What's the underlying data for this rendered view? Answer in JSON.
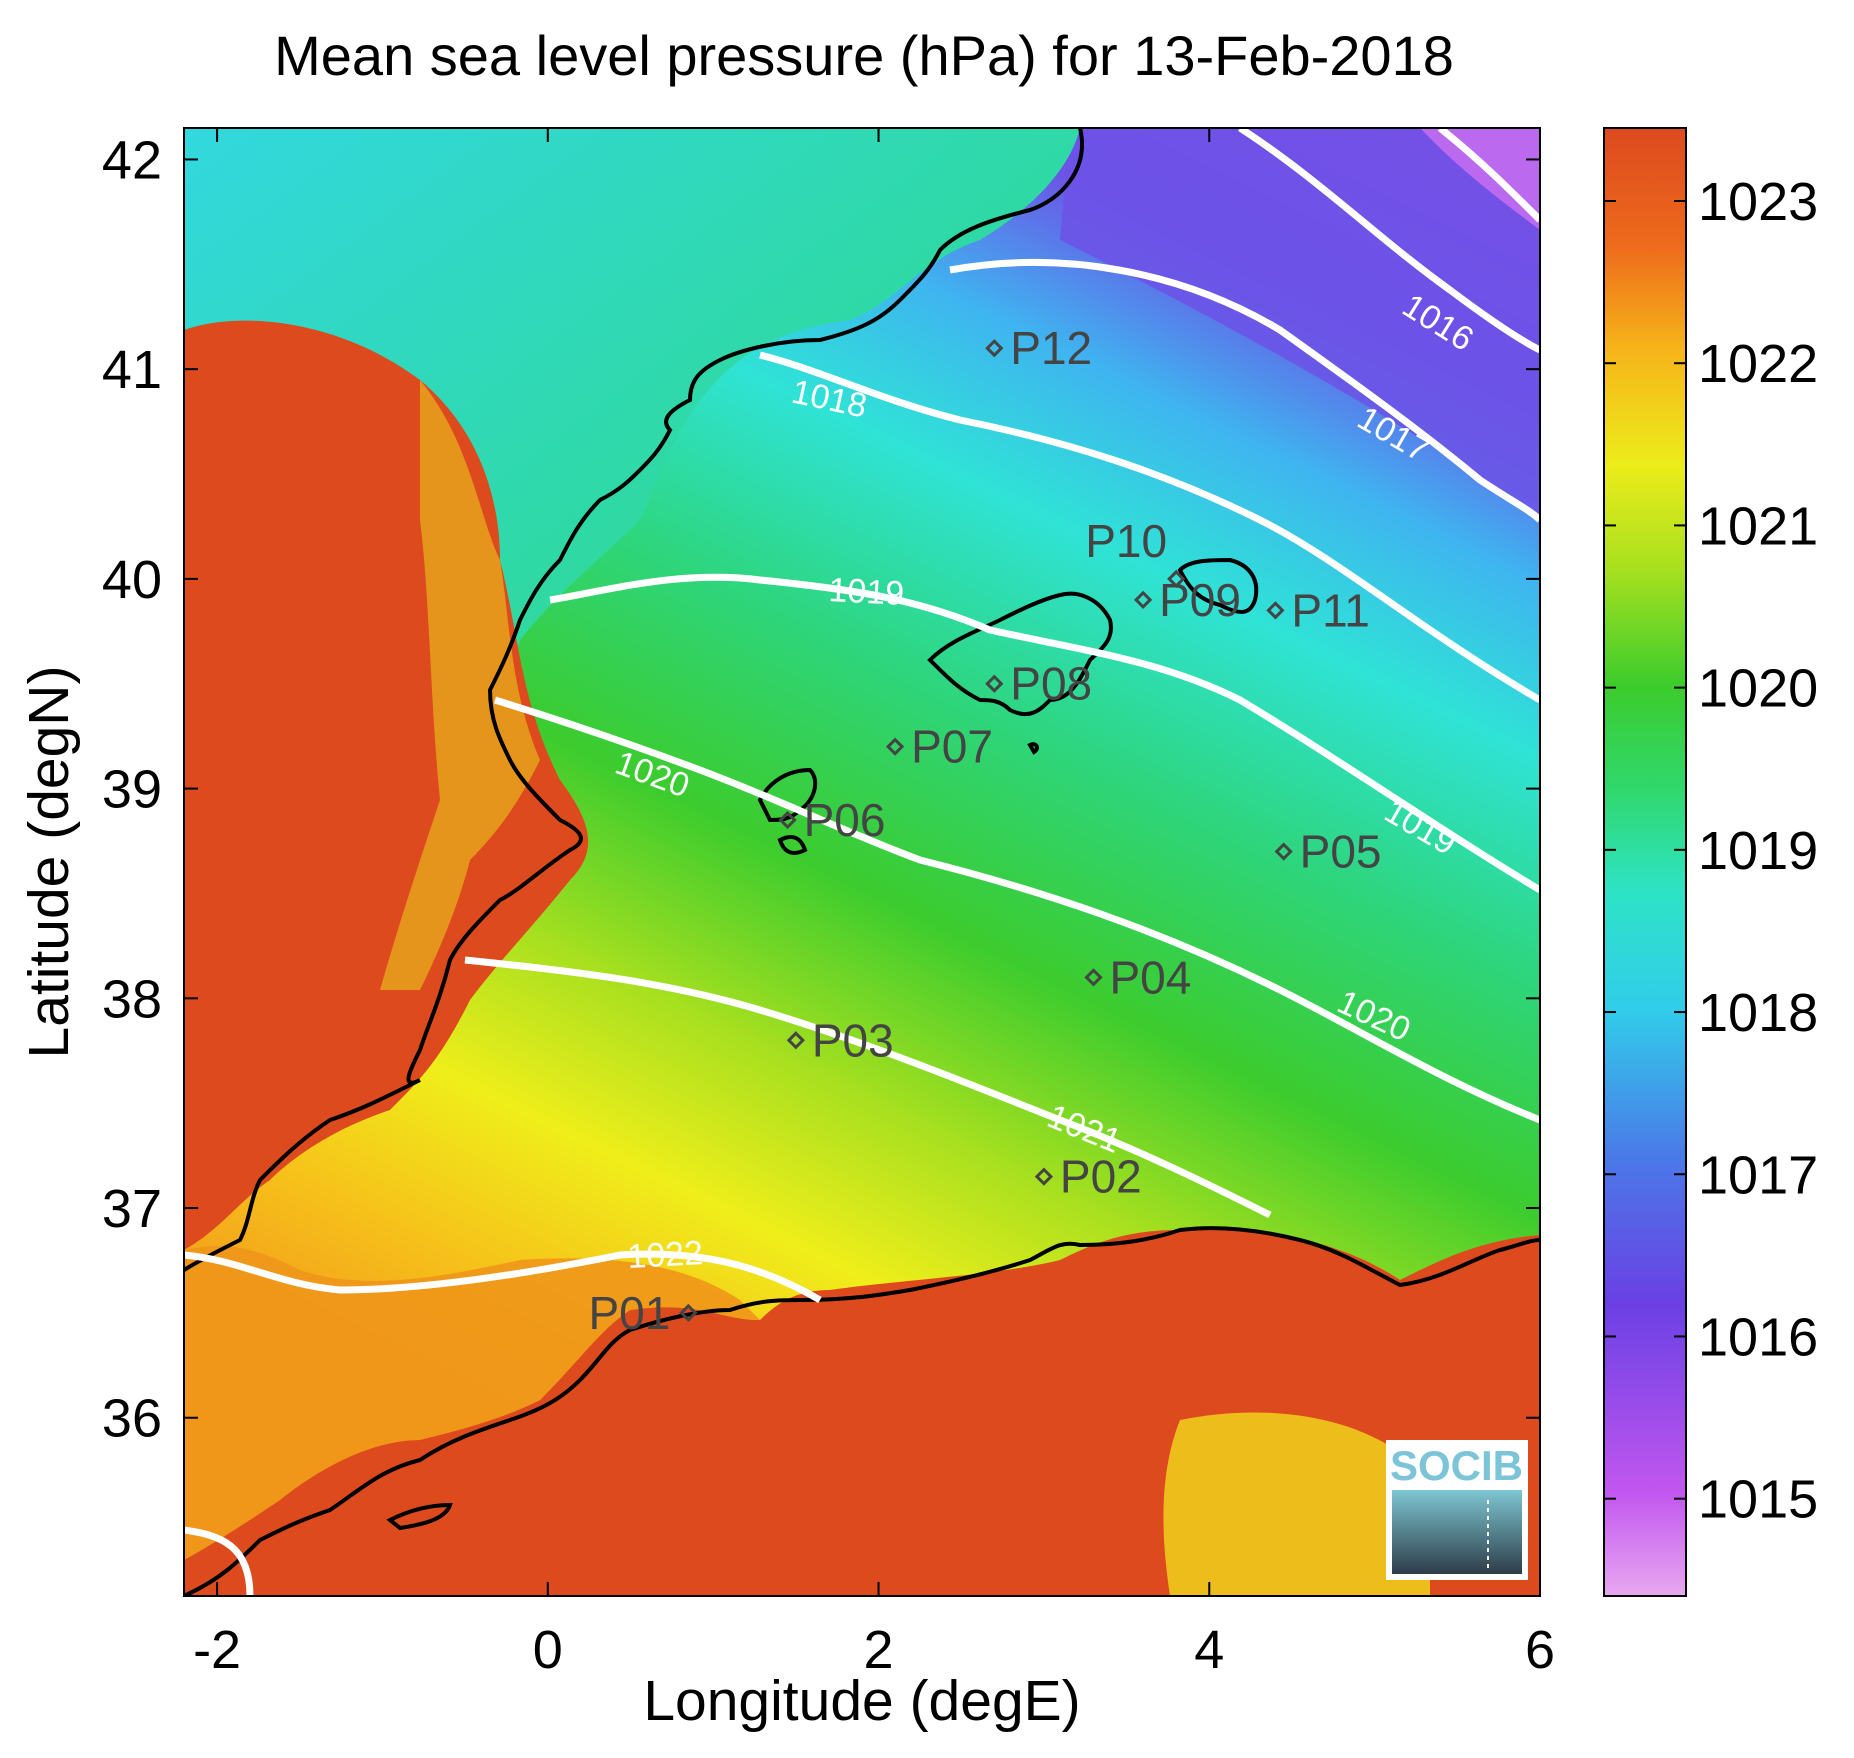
{
  "title": "Mean sea level pressure (hPa) for 13-Feb-2018",
  "axes": {
    "xlabel": "Longitude (degE)",
    "ylabel": "Latitude (degN)",
    "xlim": [
      -2.2,
      6.0
    ],
    "ylim": [
      35.15,
      42.15
    ],
    "x_ticks": [
      "-2",
      "0",
      "2",
      "4",
      "6"
    ],
    "y_ticks": [
      "36",
      "37",
      "38",
      "39",
      "40",
      "41",
      "42"
    ]
  },
  "colorbar": {
    "range": [
      1014.4,
      1023.45
    ],
    "ticks": [
      "1015",
      "1016",
      "1017",
      "1018",
      "1019",
      "1020",
      "1021",
      "1022",
      "1023"
    ],
    "colormap": "jet-like (violet-blue-cyan-green-yellow-orange-red)"
  },
  "contour_labels": [
    "1016",
    "1017",
    "1018",
    "1019",
    "1019",
    "1020",
    "1020",
    "1021",
    "1022"
  ],
  "stations": [
    {
      "label": "P01",
      "lon": 0.85,
      "lat": 36.5
    },
    {
      "label": "P02",
      "lon": 3.0,
      "lat": 37.15
    },
    {
      "label": "P03",
      "lon": 1.5,
      "lat": 37.8
    },
    {
      "label": "P04",
      "lon": 3.3,
      "lat": 38.1
    },
    {
      "label": "P05",
      "lon": 4.45,
      "lat": 38.7
    },
    {
      "label": "P06",
      "lon": 1.45,
      "lat": 38.85
    },
    {
      "label": "P07",
      "lon": 2.1,
      "lat": 39.2
    },
    {
      "label": "P08",
      "lon": 2.7,
      "lat": 39.5
    },
    {
      "label": "P09",
      "lon": 3.6,
      "lat": 39.9
    },
    {
      "label": "P10",
      "lon": 3.8,
      "lat": 40.0
    },
    {
      "label": "P11",
      "lon": 4.4,
      "lat": 39.85
    },
    {
      "label": "P12",
      "lon": 2.7,
      "lat": 41.1
    }
  ],
  "logo": {
    "text": "SOCIB"
  },
  "colors": {
    "land_high": "#d9461c",
    "sea_north_cyan": "#33d6e0",
    "sea_mid_green": "#39c93a",
    "sea_south_yellow": "#e0e61a",
    "low_violet": "#7a3fe6",
    "contour": "#ffffff",
    "coast": "#000000"
  }
}
